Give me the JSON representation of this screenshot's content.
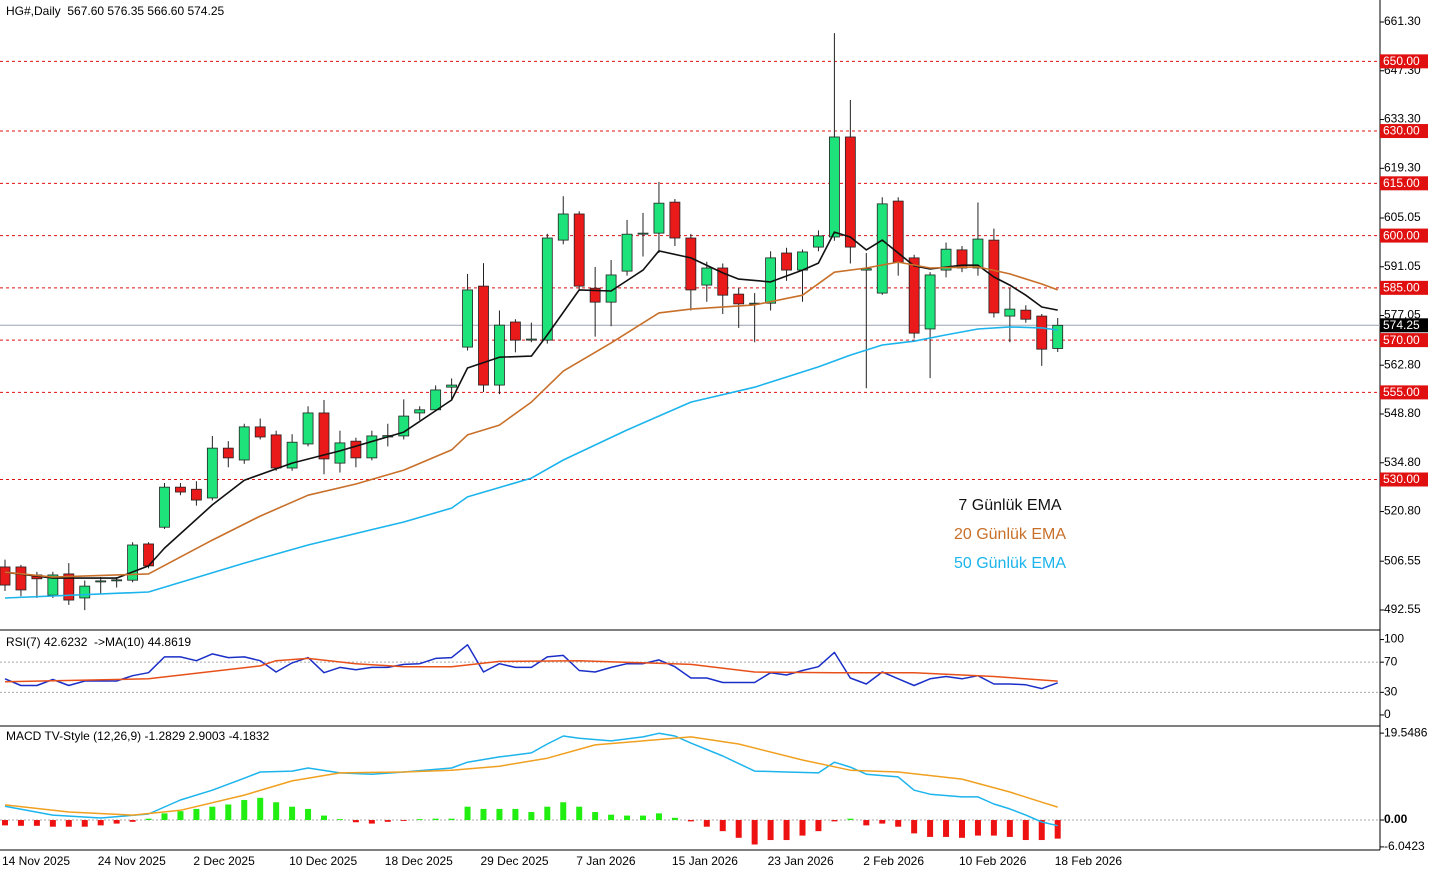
{
  "chart_data": [
    {
      "type": "candlestick",
      "title": "HG#,Daily  567.60 576.35 566.60 574.25",
      "categories": [
        "14 Nov 2025",
        null,
        null,
        null,
        null,
        null,
        "24 Nov 2025",
        null,
        null,
        null,
        null,
        null,
        "2 Dec 2025",
        null,
        null,
        null,
        null,
        null,
        "10 Dec 2025",
        null,
        null,
        null,
        null,
        null,
        "18 Dec 2025",
        null,
        null,
        null,
        null,
        null,
        "29 Dec 2025",
        null,
        null,
        null,
        null,
        null,
        "7 Jan 2026",
        null,
        null,
        null,
        null,
        null,
        "15 Jan 2026",
        null,
        null,
        null,
        null,
        null,
        "23 Jan 2026",
        null,
        null,
        null,
        null,
        null,
        "2 Feb 2026",
        null,
        null,
        null,
        null,
        null,
        "10 Feb 2026",
        null,
        null,
        null,
        null,
        null,
        "18 Feb 2026"
      ],
      "open": [
        504.9,
        504.9,
        502.6,
        496.8,
        502.9,
        496,
        500.6,
        501.0,
        501.1,
        511.5,
        516.3,
        527.8,
        527.2,
        524.7,
        539.0,
        535.6,
        545.1,
        542.8,
        533.3,
        540.2,
        549.1,
        534.7,
        541.0,
        536.2,
        542.2,
        542.5,
        549.1,
        550.0,
        556.5,
        568.0,
        585.5,
        557.1,
        575.2,
        570.0,
        570.0,
        598.7,
        606.2,
        584.9,
        580.9,
        589.8,
        600.4,
        600.7,
        609.6,
        599.3,
        585.8,
        590.7,
        583.2,
        580.4,
        580.6,
        595.0,
        590.1,
        596.7,
        599.6,
        628.3,
        590.1,
        583.5,
        609.9,
        593.6,
        573.2,
        590.1,
        595.9,
        590.7,
        598.7,
        576.9,
        578.6,
        576.9,
        567.6
      ],
      "high": [
        507,
        505.5,
        503.5,
        503.5,
        506,
        501,
        502,
        502,
        512,
        512,
        529,
        529,
        529.5,
        542.5,
        541,
        546,
        547.5,
        544,
        543,
        551,
        552.8,
        544,
        542,
        544,
        546,
        553,
        551,
        557,
        559,
        589.0,
        592.1,
        578.5,
        576,
        575,
        600.5,
        611.3,
        607,
        591,
        593,
        604.5,
        606.5,
        615.4,
        610.5,
        600.5,
        592.5,
        592,
        585,
        583.5,
        595.5,
        596.5,
        596,
        601.5,
        658.1,
        638.9,
        595,
        611,
        611,
        594.5,
        589.5,
        598,
        597,
        609.5,
        602,
        585,
        580,
        577.5,
        576.35
      ],
      "low": [
        498,
        496.5,
        496,
        496,
        494,
        492.5,
        497,
        499,
        500.5,
        504.5,
        515.8,
        525.5,
        522.5,
        524,
        533.5,
        534.5,
        541.5,
        532.5,
        532.5,
        539.5,
        531.5,
        532,
        533.5,
        535.5,
        539.5,
        541.5,
        547,
        549.5,
        553,
        567,
        555.1,
        554.5,
        566.5,
        569.4,
        569,
        597.5,
        584.5,
        571,
        574,
        588.5,
        594,
        595,
        597,
        578.5,
        581,
        577.5,
        573.5,
        569.4,
        578.5,
        587,
        581,
        595.5,
        598.5,
        592,
        556.2,
        583,
        588.5,
        570.5,
        559.1,
        588,
        589.5,
        588.5,
        576.5,
        569.4,
        575,
        562.6,
        566.6
      ],
      "close": [
        499.7,
        498.3,
        501.5,
        502.6,
        495.4,
        499.4,
        500.9,
        501.2,
        511.2,
        505.2,
        527.8,
        526.4,
        524.1,
        539.0,
        536.2,
        545.1,
        542.2,
        533.3,
        540.7,
        549.1,
        535.9,
        540.5,
        536.2,
        542.5,
        542.6,
        548.2,
        550.0,
        555.7,
        557.1,
        584.4,
        557.1,
        574.3,
        570.0,
        570.3,
        599.3,
        606.2,
        585.5,
        580.9,
        588.7,
        600.4,
        600.7,
        609.3,
        599.3,
        584.4,
        590.7,
        582.9,
        580.4,
        580.6,
        593.6,
        590.1,
        595.3,
        599.9,
        628.3,
        596.7,
        590.5,
        609.1,
        592.4,
        572.0,
        588.7,
        596.1,
        590.7,
        599.0,
        577.8,
        578.9,
        576.0,
        567.4,
        574.25
      ],
      "up_color": "#1ee37a",
      "down_color": "#ea1a1a",
      "ylim": [
        487.38,
        667.61
      ],
      "yticks": [
        {
          "value": 661.3,
          "label": "661.30"
        },
        {
          "value": 647.3,
          "label": "647.30"
        },
        {
          "value": 633.3,
          "label": "633.30"
        },
        {
          "value": 619.3,
          "label": "619.30"
        },
        {
          "value": 605.05,
          "label": "605.05"
        },
        {
          "value": 591.05,
          "label": "591.05"
        },
        {
          "value": 577.05,
          "label": "577.05"
        },
        {
          "value": 562.8,
          "label": "562.80"
        },
        {
          "value": 548.8,
          "label": "548.80"
        },
        {
          "value": 534.8,
          "label": "534.80"
        },
        {
          "value": 520.8,
          "label": "520.80"
        },
        {
          "value": 506.55,
          "label": "506.55"
        },
        {
          "value": 492.55,
          "label": "492.55"
        }
      ],
      "levels": [
        {
          "value": 650,
          "label": "650.00"
        },
        {
          "value": 630,
          "label": "630.00"
        },
        {
          "value": 615,
          "label": "615.00"
        },
        {
          "value": 600,
          "label": "600.00"
        },
        {
          "value": 585,
          "label": "585.00"
        },
        {
          "value": 570,
          "label": "570.00"
        },
        {
          "value": 555,
          "label": "555.00"
        },
        {
          "value": 530,
          "label": "530.00"
        }
      ],
      "level_color": "#e01010",
      "current": {
        "value": 574.25,
        "label": "574.25"
      },
      "series": [
        {
          "name": "7 Günlük EMA",
          "color": "#111111",
          "x": [
            0,
            3,
            7,
            9,
            10,
            13,
            15,
            18,
            21,
            25,
            28,
            29,
            31,
            33,
            34,
            36,
            38,
            40,
            41,
            43,
            45,
            46,
            48,
            50,
            51,
            52,
            53,
            54,
            55,
            56,
            57,
            58,
            60,
            61,
            62,
            63,
            64,
            65,
            66
          ],
          "values": [
            503.4,
            501.7,
            501.7,
            505.2,
            510.3,
            522.7,
            529.8,
            534.7,
            538.2,
            543.6,
            552.8,
            562.0,
            565.1,
            565.4,
            571.5,
            584.4,
            584.1,
            590.1,
            595.6,
            593.6,
            589.3,
            587.5,
            586.7,
            590.1,
            592.1,
            601.0,
            599.6,
            595.9,
            598.7,
            595.0,
            591.3,
            590.4,
            591.5,
            591.5,
            588.1,
            585.8,
            582.9,
            579.5,
            578.6
          ]
        },
        {
          "name": "20 Günlük EMA",
          "color": "#c8702a",
          "x": [
            0,
            3,
            9,
            13,
            16,
            19,
            22,
            25,
            28,
            29,
            31,
            33,
            35,
            38,
            41,
            43,
            47,
            50,
            52,
            54,
            56,
            58,
            61,
            63,
            65,
            66
          ],
          "values": [
            503.4,
            502.0,
            502.9,
            512.6,
            519.5,
            525.5,
            528.7,
            532.7,
            538.5,
            542.8,
            545.6,
            552.2,
            561.1,
            569.2,
            577.8,
            578.9,
            580.1,
            582.9,
            589.5,
            590.7,
            592.4,
            590.7,
            591.0,
            589.0,
            586.1,
            584.4
          ]
        },
        {
          "name": "50 Günlük EMA",
          "color": "#1cb4ec",
          "x": [
            0,
            9,
            15,
            19,
            25,
            28,
            29,
            33,
            35,
            39,
            43,
            47,
            51,
            53,
            55,
            57,
            59,
            61,
            63,
            65,
            66
          ],
          "values": [
            496.0,
            497.7,
            506.0,
            511.2,
            517.8,
            521.8,
            525.0,
            530.4,
            535.6,
            544.2,
            552.2,
            556.5,
            562.3,
            565.7,
            568.6,
            569.7,
            571.5,
            573.2,
            573.8,
            573.5,
            572.9
          ]
        }
      ]
    },
    {
      "type": "line",
      "title": "RSI(7) 42.6232  ->MA(10) 44.8619",
      "ylim": [
        -12,
        110
      ],
      "yticks": [
        100,
        70,
        30,
        0
      ],
      "series": [
        {
          "color": "#1a2fc8",
          "values": [
            48,
            39,
            39,
            47,
            39,
            45,
            45,
            45,
            52,
            56,
            77,
            77,
            72,
            81,
            76,
            77,
            72,
            57,
            69,
            76,
            56,
            63,
            60,
            63,
            63,
            67,
            68,
            75,
            76,
            93,
            57,
            68,
            63,
            63,
            77,
            79,
            59,
            57,
            63,
            68,
            68,
            73,
            64,
            49,
            49,
            43,
            43,
            43,
            56,
            53,
            59,
            64,
            83,
            49,
            41,
            57,
            48,
            39,
            48,
            51,
            48,
            52,
            41,
            41,
            40,
            35,
            42.6232
          ]
        },
        {
          "color": "#e8501a",
          "x": [
            0,
            9,
            16,
            17,
            19,
            22,
            25,
            28,
            31,
            36,
            43,
            47,
            52,
            57,
            62,
            66
          ],
          "values": [
            44,
            48,
            65,
            72,
            75,
            68,
            64,
            64,
            71,
            72,
            67,
            57,
            56,
            56,
            51,
            44.8619
          ]
        }
      ]
    },
    {
      "type": "bar",
      "title": "MACD TV-Style (12,26,9) -1.2829 2.9003 -4.1832",
      "ylim": [
        -6.74,
        20.7
      ],
      "yticks": [
        19.5486,
        {
          "value": 0,
          "label": "0.00"
        },
        -6.0423
      ],
      "values": [
        -1.2,
        -1.3,
        -1.3,
        -1.5,
        -1.5,
        -1.5,
        -1.2,
        -0.8,
        -0.4,
        0.3,
        1.5,
        2,
        2.5,
        3,
        3.5,
        4.5,
        5,
        4,
        3,
        2.5,
        1,
        0.2,
        -0.5,
        -0.8,
        -0.4,
        -0.2,
        0.2,
        0.3,
        0.3,
        3,
        2.5,
        2.5,
        2.5,
        1.8,
        3.0,
        4.0,
        3.0,
        1.8,
        1.2,
        1.0,
        1.0,
        1.5,
        0.5,
        -0.3,
        -1.5,
        -2.5,
        -4.0,
        -5.5,
        -4.5,
        -4.5,
        -3.5,
        -2.5,
        -0.3,
        0.3,
        -1.2,
        -0.8,
        -1.5,
        -3.0,
        -3.8,
        -3.8,
        -4.0,
        -3.5,
        -3.5,
        -3.8,
        -4.5,
        -4.5,
        -4.1832
      ],
      "up_color": "#22ee11",
      "down_color": "#ee1111",
      "series": [
        {
          "color": "#1cb4ec",
          "x": [
            0,
            3,
            6,
            9,
            11,
            13,
            15,
            16,
            18,
            19,
            21,
            23,
            25,
            28,
            29,
            31,
            33,
            34,
            35,
            36,
            38,
            40,
            41,
            42,
            43,
            45,
            47,
            49,
            51,
            52,
            53,
            54,
            56,
            57,
            58,
            60,
            61,
            62,
            63,
            64,
            65,
            66
          ],
          "values": [
            3.1,
            1.1,
            0.45,
            1.35,
            4.5,
            6.7,
            9.4,
            10.8,
            11.0,
            11.7,
            10.6,
            10.3,
            10.8,
            11.7,
            13.0,
            14.2,
            15.1,
            17.1,
            18.9,
            18.4,
            17.8,
            18.7,
            19.5,
            18.9,
            17.3,
            14.4,
            11.0,
            10.8,
            10.6,
            13.0,
            11.9,
            10.3,
            9.7,
            6.7,
            5.8,
            5.2,
            5.2,
            3.6,
            2.5,
            1.1,
            -0.45,
            -1.2829
          ]
        },
        {
          "color": "#f0a020",
          "x": [
            0,
            4,
            8,
            11,
            15,
            18,
            21,
            25,
            28,
            31,
            34,
            37,
            40,
            43,
            46,
            50,
            53,
            56,
            60,
            63,
            65,
            66
          ],
          "values": [
            3.4,
            1.8,
            1.1,
            2.2,
            5.6,
            8.8,
            10.6,
            10.8,
            11.2,
            12.1,
            13.9,
            16.9,
            17.8,
            18.7,
            17.1,
            13.5,
            11.2,
            10.8,
            9.2,
            6.3,
            4.0,
            2.9003
          ]
        }
      ]
    }
  ]
}
